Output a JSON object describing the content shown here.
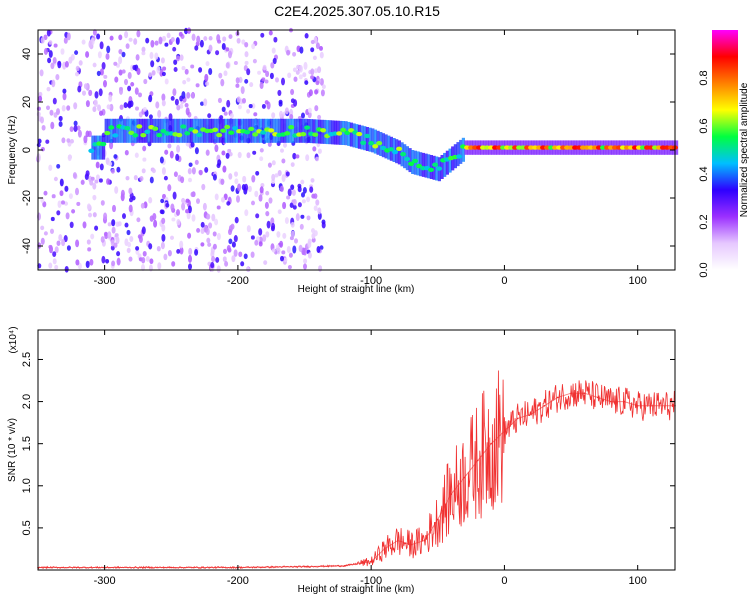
{
  "title": "C2E4.2025.307.05.10.R15",
  "chart_data": [
    {
      "type": "heatmap",
      "name": "spectrogram",
      "xlabel": "Height of straight line (km)",
      "ylabel": "Frequency (Hz)",
      "xlim": [
        -350,
        128
      ],
      "ylim": [
        -50,
        50
      ],
      "xticks": [
        -300,
        -200,
        -100,
        0,
        100
      ],
      "xtick_labels": [
        "-300",
        "-200",
        "-100",
        "0",
        "100"
      ],
      "yticks": [
        -40,
        -20,
        0,
        20,
        40
      ],
      "ytick_labels": [
        "-40",
        "-20",
        "0",
        "20",
        "40"
      ],
      "ridge_points": [
        {
          "x": -300,
          "y": 8
        },
        {
          "x": -250,
          "y": 8
        },
        {
          "x": -200,
          "y": 8
        },
        {
          "x": -150,
          "y": 8
        },
        {
          "x": -120,
          "y": 7
        },
        {
          "x": -100,
          "y": 4
        },
        {
          "x": -80,
          "y": -1
        },
        {
          "x": -70,
          "y": -5
        },
        {
          "x": -50,
          "y": -8
        },
        {
          "x": -30,
          "y": 1
        },
        {
          "x": 0,
          "y": 1
        },
        {
          "x": 50,
          "y": 1
        },
        {
          "x": 128,
          "y": 1
        }
      ],
      "colorbar": {
        "label": "Normalized spectral amplitude",
        "range": [
          0,
          1
        ],
        "ticks": [
          0.0,
          0.2,
          0.4,
          0.6,
          0.8
        ],
        "tick_labels": [
          "0.0",
          "0.2",
          "0.4",
          "0.6",
          "0.8"
        ],
        "colors": [
          "#ffffff",
          "#e6c8ff",
          "#9b30ff",
          "#2e00ff",
          "#00bfff",
          "#00ff40",
          "#ffff00",
          "#ff8000",
          "#ff0000",
          "#ff00ff"
        ]
      }
    },
    {
      "type": "line",
      "name": "snr",
      "xlabel": "Height of straight line (km)",
      "ylabel": "SNR (10 * v/v)",
      "scale_label": "(x10⁴)",
      "xlim": [
        -350,
        128
      ],
      "ylim": [
        0,
        2.85
      ],
      "xticks": [
        -300,
        -200,
        -100,
        0,
        100
      ],
      "xtick_labels": [
        "-300",
        "-200",
        "-100",
        "0",
        "100"
      ],
      "yticks": [
        0.5,
        1.0,
        1.5,
        2.0,
        2.5
      ],
      "ytick_labels": [
        "0.5",
        "1.0",
        "1.5",
        "2.0",
        "2.5"
      ],
      "line_color": "#f03030",
      "series": [
        {
          "name": "SNR",
          "x": [
            -350,
            -300,
            -250,
            -200,
            -150,
            -120,
            -100,
            -90,
            -80,
            -70,
            -60,
            -50,
            -40,
            -30,
            -20,
            -10,
            0,
            10,
            20,
            30,
            40,
            50,
            60,
            70,
            80,
            90,
            100,
            110,
            128
          ],
          "y": [
            0.03,
            0.03,
            0.03,
            0.03,
            0.04,
            0.05,
            0.1,
            0.25,
            0.35,
            0.3,
            0.35,
            0.6,
            0.9,
            1.1,
            1.3,
            1.5,
            1.65,
            1.8,
            1.85,
            1.95,
            2.05,
            2.1,
            2.1,
            2.05,
            2.0,
            2.0,
            1.95,
            1.95,
            1.95
          ]
        }
      ]
    }
  ]
}
